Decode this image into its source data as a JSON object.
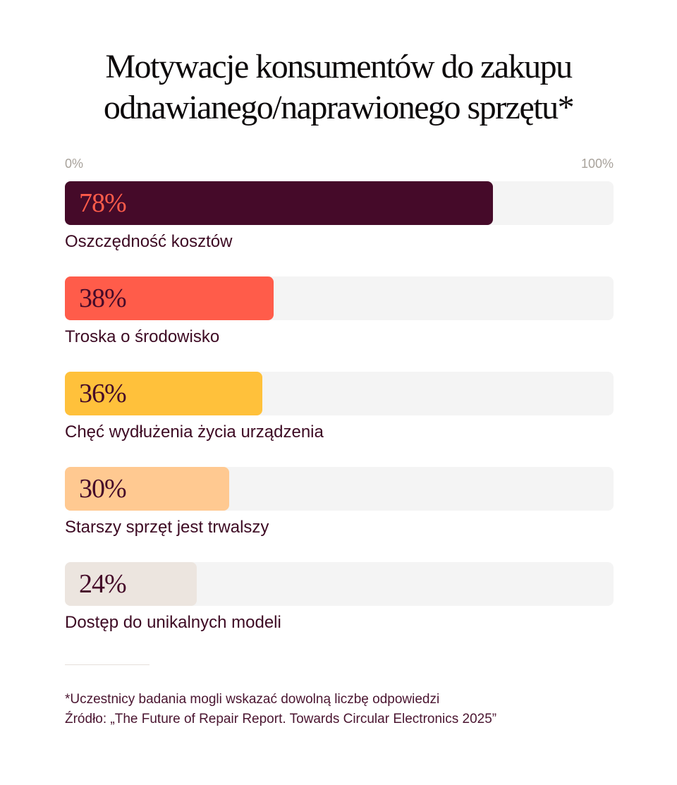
{
  "chart_data": {
    "type": "bar",
    "orientation": "horizontal",
    "title": "Motywacje konsumentów do zakupu odnawianego/naprawionego sprzętu*",
    "title_lines": [
      "Motywacje konsumentów do zakupu",
      "odnawianego/naprawionego sprzętu*"
    ],
    "axis": {
      "min_label": "0%",
      "max_label": "100%",
      "xlim": [
        0,
        100
      ]
    },
    "categories": [
      "Oszczędność kosztów",
      "Troska o środowisko",
      "Chęć wydłużenia życia urządzenia",
      "Starszy sprzęt jest trwalszy",
      "Dostęp do unikalnych modeli"
    ],
    "values": [
      78,
      38,
      36,
      30,
      24
    ],
    "value_labels": [
      "78%",
      "38%",
      "36%",
      "30%",
      "24%"
    ],
    "bar_colors": [
      "#450a29",
      "#ff5c4a",
      "#ffc13b",
      "#ffc991",
      "#ece5df"
    ],
    "label_colors": [
      "#ff5c4a",
      "#450a29",
      "#450a29",
      "#450a29",
      "#450a29"
    ],
    "track_color": "#f4f4f4"
  },
  "footnote": {
    "note": "*Uczestnicy badania mogli wskazać dowolną liczbę odpowiedzi",
    "source": "Źródło: „The Future of Repair Report. Towards Circular Electronics 2025”"
  }
}
